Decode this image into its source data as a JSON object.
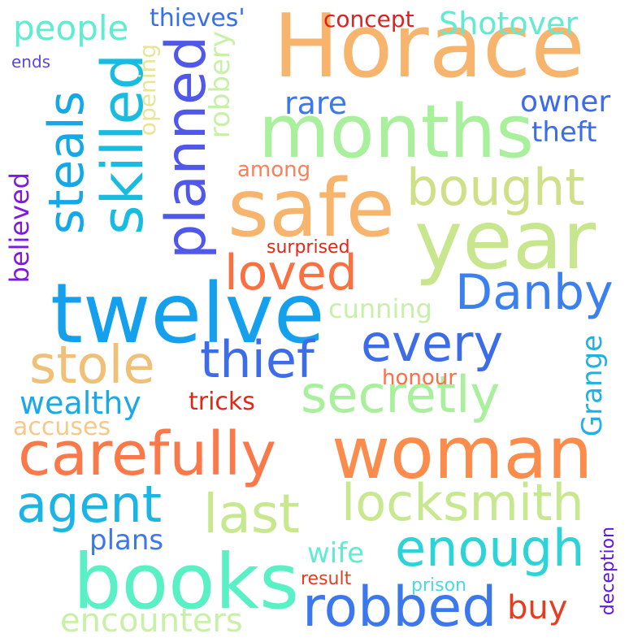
{
  "words": [
    {
      "text": "Horace",
      "color": "#f6b46c"
    },
    {
      "text": "months",
      "color": "#a8f09c"
    },
    {
      "text": "safe",
      "color": "#f6b46c"
    },
    {
      "text": "year",
      "color": "#c8e68e"
    },
    {
      "text": "twelve",
      "color": "#14a0ec"
    },
    {
      "text": "woman",
      "color": "#fb8c4c"
    },
    {
      "text": "books",
      "color": "#58f0c4"
    },
    {
      "text": "carefully",
      "color": "#fb7848"
    },
    {
      "text": "secretly",
      "color": "#a8f09c"
    },
    {
      "text": "robbed",
      "color": "#3c78ec"
    },
    {
      "text": "planned",
      "color": "#5058ec"
    },
    {
      "text": "skilled",
      "color": "#18bce0"
    },
    {
      "text": "steals",
      "color": "#14a8e8"
    },
    {
      "text": "stole",
      "color": "#f0c078"
    },
    {
      "text": "thief",
      "color": "#3c6ce8"
    },
    {
      "text": "every",
      "color": "#3c6ce8"
    },
    {
      "text": "Danby",
      "color": "#3c80f0"
    },
    {
      "text": "loved",
      "color": "#fb7040"
    },
    {
      "text": "bought",
      "color": "#d0e088"
    },
    {
      "text": "last",
      "color": "#c8e890"
    },
    {
      "text": "locksmith",
      "color": "#c8e890"
    },
    {
      "text": "agent",
      "color": "#1cb4e4"
    },
    {
      "text": "enough",
      "color": "#2cd4d8"
    },
    {
      "text": "people",
      "color": "#60ecd0"
    },
    {
      "text": "Shotover",
      "color": "#60ecd0"
    },
    {
      "text": "thieves'",
      "color": "#3870ec"
    },
    {
      "text": "concept",
      "color": "#e02020"
    },
    {
      "text": "ends",
      "color": "#5848e0"
    },
    {
      "text": "rare",
      "color": "#3c78ec"
    },
    {
      "text": "owner",
      "color": "#3c6ce8"
    },
    {
      "text": "theft",
      "color": "#3c6ce8"
    },
    {
      "text": "robbery",
      "color": "#c8f0a8"
    },
    {
      "text": "opening",
      "color": "#e8e498"
    },
    {
      "text": "among",
      "color": "#fb8058"
    },
    {
      "text": "believed",
      "color": "#8018e0"
    },
    {
      "text": "surprised",
      "color": "#e02818"
    },
    {
      "text": "cunning",
      "color": "#c8f0a8"
    },
    {
      "text": "honour",
      "color": "#fb7048"
    },
    {
      "text": "Grange",
      "color": "#20b0e4"
    },
    {
      "text": "wealthy",
      "color": "#1ca8e4"
    },
    {
      "text": "tricks",
      "color": "#e02818"
    },
    {
      "text": "accuses",
      "color": "#f8c888"
    },
    {
      "text": "plans",
      "color": "#3c78ec"
    },
    {
      "text": "wife",
      "color": "#60ecd0"
    },
    {
      "text": "encounters",
      "color": "#c8f0a8"
    },
    {
      "text": "buy",
      "color": "#e83c20"
    },
    {
      "text": "result",
      "color": "#e83c20"
    },
    {
      "text": "prison",
      "color": "#4cd8e8"
    },
    {
      "text": "deception",
      "color": "#6018e0"
    }
  ]
}
